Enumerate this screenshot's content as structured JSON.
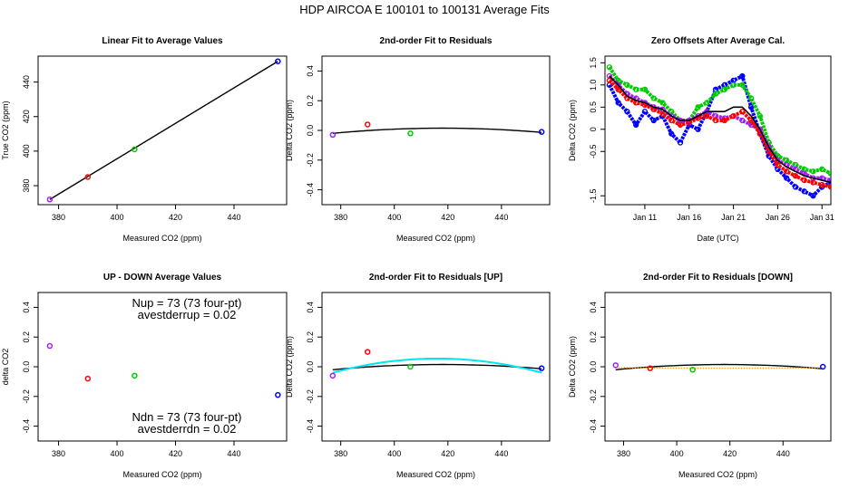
{
  "figure_title": "HDP    AIRCOA E    100101 to 100131    Average Fits",
  "colors": {
    "purple": "#a020f0",
    "red": "#ff0000",
    "green": "#00cc00",
    "blue": "#0000ff",
    "black": "#000000",
    "cyan": "#00e5ee",
    "orange": "#ffa500"
  },
  "chart_data": [
    {
      "id": "p1",
      "type": "scatter",
      "title": "Linear Fit to Average Values",
      "xlabel": "Measured CO2 (ppm)",
      "ylabel": "True CO2 (ppm)",
      "xlim": [
        373,
        458
      ],
      "ylim": [
        369,
        455
      ],
      "xticks": [
        380,
        400,
        420,
        440
      ],
      "yticks": [
        380,
        400,
        420,
        440
      ],
      "xtick_labels": [
        "380",
        "400",
        "420",
        "440"
      ],
      "ytick_labels": [
        "380",
        "400",
        "420",
        "440"
      ],
      "points": [
        {
          "x": 377,
          "y": 372,
          "color": "purple"
        },
        {
          "x": 390,
          "y": 385,
          "color": "red"
        },
        {
          "x": 406,
          "y": 401,
          "color": "green"
        },
        {
          "x": 455,
          "y": 452,
          "color": "blue"
        }
      ],
      "lines": [
        {
          "type": "linear",
          "x0": 377,
          "x1": 455,
          "y0": 372.0,
          "y1": 452.0,
          "color": "black"
        }
      ]
    },
    {
      "id": "p2",
      "type": "scatter",
      "title": "2nd-order Fit to Residuals",
      "xlabel": "Measured CO2 (ppm)",
      "ylabel": "Delta CO2 (ppm)",
      "xlim": [
        373,
        458
      ],
      "ylim": [
        -0.5,
        0.5
      ],
      "xticks": [
        380,
        400,
        420,
        440
      ],
      "yticks": [
        -0.4,
        -0.2,
        0.0,
        0.2,
        0.4
      ],
      "xtick_labels": [
        "380",
        "400",
        "420",
        "440"
      ],
      "ytick_labels": [
        "-0.4",
        "-0.2",
        "0.0",
        "0.2",
        "0.4"
      ],
      "points": [
        {
          "x": 377,
          "y": -0.03,
          "color": "purple"
        },
        {
          "x": 390,
          "y": 0.04,
          "color": "red"
        },
        {
          "x": 406,
          "y": -0.02,
          "color": "green"
        },
        {
          "x": 455,
          "y": -0.01,
          "color": "blue"
        }
      ],
      "lines": [
        {
          "type": "quad",
          "x0": 377,
          "x1": 455,
          "xv": 418,
          "yv": 0.015,
          "y0": -0.02,
          "color": "black"
        }
      ]
    },
    {
      "id": "p3",
      "type": "line",
      "title": "Zero Offsets After Average Cal.",
      "xlabel": "Date (UTC)",
      "ylabel": "Delta CO2 (ppm)",
      "xlim": [
        6.5,
        32.0
      ],
      "ylim": [
        -1.7,
        1.65
      ],
      "xticks": [
        11,
        16,
        21,
        26,
        31
      ],
      "yticks": [
        -1.5,
        -0.5,
        0.0,
        0.5,
        1.0,
        1.5
      ],
      "xtick_labels": [
        "Jan 11",
        "Jan 16",
        "Jan 21",
        "Jan 26",
        "Jan 31"
      ],
      "ytick_labels": [
        "-1.5",
        "-0.5",
        "0",
        "0.5",
        "1.0",
        "1.5"
      ],
      "series": [
        {
          "name": "blue",
          "color": "blue",
          "x": [
            7,
            8,
            9,
            10,
            11,
            12,
            13,
            14,
            15,
            16,
            17,
            18,
            19,
            20,
            21,
            22,
            23,
            24,
            25,
            26,
            27,
            28,
            29,
            30,
            31,
            32
          ],
          "y": [
            1.0,
            0.6,
            0.4,
            0.1,
            0.4,
            0.2,
            0.3,
            -0.1,
            -0.3,
            0.1,
            0.0,
            0.4,
            0.9,
            1.0,
            1.1,
            1.2,
            0.5,
            -0.1,
            -0.6,
            -0.9,
            -1.1,
            -1.3,
            -1.4,
            -1.5,
            -1.3,
            -1.2
          ]
        },
        {
          "name": "green",
          "color": "green",
          "x": [
            7,
            8,
            9,
            10,
            11,
            12,
            13,
            14,
            15,
            16,
            17,
            18,
            19,
            20,
            21,
            22,
            23,
            24,
            25,
            26,
            27,
            28,
            29,
            30,
            31,
            32
          ],
          "y": [
            1.4,
            1.1,
            1.0,
            0.9,
            0.9,
            0.7,
            0.6,
            0.4,
            0.2,
            0.2,
            0.5,
            0.6,
            0.8,
            0.9,
            1.0,
            1.0,
            0.7,
            0.3,
            -0.3,
            -0.6,
            -0.7,
            -0.8,
            -0.9,
            -0.95,
            -0.9,
            -1.0
          ]
        },
        {
          "name": "purple",
          "color": "purple",
          "x": [
            7,
            8,
            9,
            10,
            11,
            12,
            13,
            14,
            15,
            16,
            17,
            18,
            19,
            20,
            21,
            22,
            23,
            24,
            25,
            26,
            27,
            28,
            29,
            30,
            31,
            32
          ],
          "y": [
            1.2,
            1.0,
            0.8,
            0.7,
            0.6,
            0.5,
            0.45,
            0.3,
            0.2,
            0.2,
            0.3,
            0.4,
            0.3,
            0.25,
            0.3,
            0.2,
            0.1,
            0.0,
            -0.4,
            -0.7,
            -0.8,
            -0.9,
            -1.0,
            -1.1,
            -1.1,
            -1.15
          ]
        },
        {
          "name": "red",
          "color": "red",
          "x": [
            7,
            8,
            9,
            10,
            11,
            12,
            13,
            14,
            15,
            16,
            17,
            18,
            19,
            20,
            21,
            22,
            23,
            24,
            25,
            26,
            27,
            28,
            29,
            30,
            31,
            32
          ],
          "y": [
            1.1,
            0.9,
            0.7,
            0.6,
            0.55,
            0.45,
            0.35,
            0.2,
            0.1,
            0.15,
            0.25,
            0.3,
            0.2,
            0.2,
            0.3,
            0.4,
            0.2,
            -0.1,
            -0.5,
            -0.8,
            -0.95,
            -1.05,
            -1.15,
            -1.2,
            -1.25,
            -1.3
          ]
        },
        {
          "name": "black",
          "color": "black",
          "x": [
            7,
            8,
            9,
            10,
            11,
            12,
            13,
            14,
            15,
            16,
            17,
            18,
            19,
            20,
            21,
            22,
            23,
            24,
            25,
            26,
            27,
            28,
            29,
            30,
            31,
            32
          ],
          "y": [
            1.2,
            1.0,
            0.75,
            0.65,
            0.6,
            0.5,
            0.45,
            0.3,
            0.2,
            0.2,
            0.3,
            0.4,
            0.4,
            0.4,
            0.5,
            0.5,
            0.3,
            0.0,
            -0.4,
            -0.7,
            -0.85,
            -0.95,
            -1.05,
            -1.1,
            -1.15,
            -1.2
          ]
        }
      ]
    },
    {
      "id": "p4",
      "type": "scatter",
      "title": "UP - DOWN Average Values",
      "xlabel": "Measured CO2 (ppm)",
      "ylabel": "delta CO2",
      "xlim": [
        373,
        458
      ],
      "ylim": [
        -0.5,
        0.5
      ],
      "xticks": [
        380,
        400,
        420,
        440
      ],
      "yticks": [
        -0.4,
        -0.2,
        0.0,
        0.2,
        0.4
      ],
      "xtick_labels": [
        "380",
        "400",
        "420",
        "440"
      ],
      "ytick_labels": [
        "-0.4",
        "-0.2",
        "0.0",
        "0.2",
        "0.4"
      ],
      "points": [
        {
          "x": 377,
          "y": 0.14,
          "color": "purple"
        },
        {
          "x": 390,
          "y": -0.08,
          "color": "red"
        },
        {
          "x": 406,
          "y": -0.06,
          "color": "green"
        },
        {
          "x": 455,
          "y": -0.19,
          "color": "blue"
        }
      ],
      "lines": []
    },
    {
      "id": "p5",
      "type": "scatter",
      "title": "2nd-order Fit to Residuals [UP]",
      "xlabel": "Measured CO2 (ppm)",
      "ylabel": "Delta CO2 (ppm)",
      "xlim": [
        373,
        458
      ],
      "ylim": [
        -0.5,
        0.5
      ],
      "xticks": [
        380,
        400,
        420,
        440
      ],
      "yticks": [
        -0.4,
        -0.2,
        0.0,
        0.2,
        0.4
      ],
      "xtick_labels": [
        "380",
        "400",
        "420",
        "440"
      ],
      "ytick_labels": [
        "-0.4",
        "-0.2",
        "0.0",
        "0.2",
        "0.4"
      ],
      "points": [
        {
          "x": 377,
          "y": -0.06,
          "color": "purple"
        },
        {
          "x": 390,
          "y": 0.1,
          "color": "red"
        },
        {
          "x": 406,
          "y": 0.0,
          "color": "green"
        },
        {
          "x": 455,
          "y": -0.01,
          "color": "blue"
        }
      ],
      "lines": [
        {
          "type": "quad",
          "x0": 377,
          "x1": 455,
          "xv": 418,
          "yv": 0.015,
          "y0": -0.02,
          "color": "black"
        },
        {
          "type": "quad",
          "x0": 377,
          "x1": 455,
          "xv": 416,
          "yv": 0.055,
          "y0": -0.04,
          "color": "cyan"
        }
      ]
    },
    {
      "id": "p6",
      "type": "scatter",
      "title": "2nd-order Fit to Residuals [DOWN]",
      "xlabel": "Measured CO2 (ppm)",
      "ylabel": "Delta CO2 (ppm)",
      "xlim": [
        373,
        458
      ],
      "ylim": [
        -0.5,
        0.5
      ],
      "xticks": [
        380,
        400,
        420,
        440
      ],
      "yticks": [
        -0.4,
        -0.2,
        0.0,
        0.2,
        0.4
      ],
      "xtick_labels": [
        "380",
        "400",
        "420",
        "440"
      ],
      "ytick_labels": [
        "-0.4",
        "-0.2",
        "0.0",
        "0.2",
        "0.4"
      ],
      "points": [
        {
          "x": 377,
          "y": 0.01,
          "color": "purple"
        },
        {
          "x": 390,
          "y": -0.01,
          "color": "red"
        },
        {
          "x": 406,
          "y": -0.02,
          "color": "green"
        },
        {
          "x": 455,
          "y": 0.0,
          "color": "blue"
        }
      ],
      "lines": [
        {
          "type": "quad",
          "x0": 377,
          "x1": 455,
          "xv": 418,
          "yv": 0.015,
          "y0": -0.02,
          "color": "black"
        },
        {
          "type": "quad",
          "x0": 377,
          "x1": 455,
          "xv": 418,
          "yv": -0.01,
          "y0": -0.005,
          "color": "orange",
          "dotted": true
        }
      ]
    }
  ],
  "annotations": {
    "nup": "Nup = 73 (73 four-pt)",
    "avestderrup": "avestderrup =  0.02",
    "ndn": "Ndn = 73 (73 four-pt)",
    "avestderrdn": "avestderrdn =  0.02"
  }
}
